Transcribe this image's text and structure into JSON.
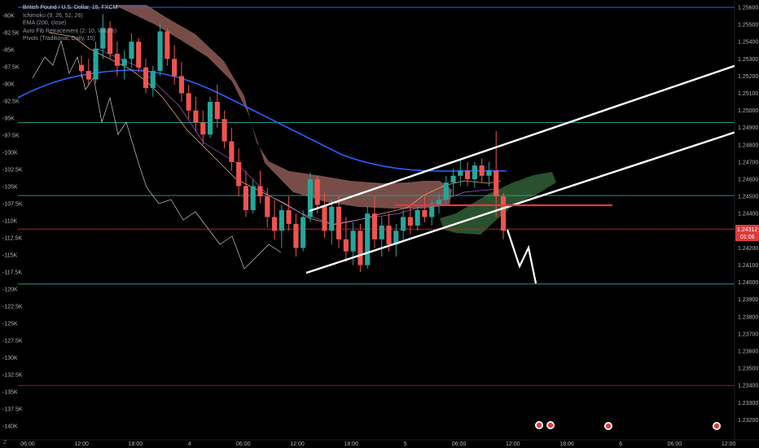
{
  "legend": {
    "symbol": "British Pound / U.S. Dollar, 15, FXCM",
    "ichimoku": "Ichimoku (9, 26, 52, 26)",
    "ema": "EMA (200, close)",
    "fib": "Auto Fib Retracement (2, 10, Values)",
    "pivots": "Pivots (Traditional, Daily, 15)"
  },
  "corner_label": "Z",
  "price_tag": {
    "value": "1.24312",
    "countdown": "01:06",
    "color": "#e03b3b"
  },
  "colors": {
    "background": "#000000",
    "up_candle": "#26a69a",
    "down_candle": "#ef5350",
    "ema": "#2962ff",
    "cloud_bear": "#8d5a55",
    "cloud_bull": "#2f5a32",
    "channel": "#ffffff",
    "fib_line": "#26a69a",
    "pivot_red": "#b22222",
    "resistance": "#e03b3b",
    "top_line": "#2962ff"
  },
  "chart_data": {
    "type": "candlestick",
    "symbol": "GBPUSD",
    "timeframe": "15",
    "right_axis_ticks": [
      "1.25600",
      "1.25500",
      "1.25400",
      "1.25300",
      "1.25200",
      "1.25100",
      "1.25000",
      "1.24900",
      "1.24800",
      "1.24700",
      "1.24600",
      "1.24500",
      "1.24400",
      "1.24300",
      "1.24200",
      "1.24100",
      "1.24000",
      "1.23900",
      "1.23800",
      "1.23700",
      "1.23600",
      "1.23500",
      "1.23400",
      "1.23300",
      "1.23200"
    ],
    "right_axis_range": [
      1.2315,
      1.2563
    ],
    "left_axis_ticks": [
      "-80K",
      "-82.5K",
      "-85K",
      "-87.5K",
      "-90K",
      "-92.5K",
      "-95K",
      "-97.5K",
      "-100K",
      "-102.5K",
      "-105K",
      "-107.5K",
      "-110K",
      "-112.5K",
      "-115K",
      "-117.5K",
      "-120K",
      "-122.5K",
      "-125K",
      "-127.5K",
      "-130K",
      "-132.5K",
      "-135K",
      "-137.5K",
      "-140K"
    ],
    "time_labels": [
      "06:00",
      "12:00",
      "18:00",
      "4",
      "06:00",
      "12:00",
      "18:00",
      "5",
      "06:00",
      "12:00",
      "18:00",
      "6",
      "06:00",
      "12:00"
    ],
    "horizontal_levels": [
      {
        "price": 1.256,
        "kind": "top"
      },
      {
        "price": 1.2493,
        "kind": "fib"
      },
      {
        "price": 1.24505,
        "kind": "fib"
      },
      {
        "price": 1.2431,
        "kind": "pivot"
      },
      {
        "price": 1.2399,
        "kind": "fib"
      },
      {
        "price": 1.234,
        "kind": "pivot"
      }
    ],
    "resistance_segment": {
      "price": 1.24472
    },
    "last_price": 1.24312,
    "candles": [
      [
        1.25265,
        1.2532,
        1.2519,
        1.2523
      ],
      [
        1.2523,
        1.253,
        1.2515,
        1.2518
      ],
      [
        1.2518,
        1.254,
        1.2516,
        1.2536
      ],
      [
        1.2536,
        1.2556,
        1.253,
        1.2548
      ],
      [
        1.2548,
        1.2552,
        1.253,
        1.2533
      ],
      [
        1.2533,
        1.254,
        1.252,
        1.2526
      ],
      [
        1.2526,
        1.2535,
        1.2518,
        1.253
      ],
      [
        1.253,
        1.2545,
        1.2525,
        1.254
      ],
      [
        1.254,
        1.2542,
        1.2522,
        1.2525
      ],
      [
        1.2525,
        1.253,
        1.251,
        1.2513
      ],
      [
        1.2513,
        1.2526,
        1.2508,
        1.2523
      ],
      [
        1.2523,
        1.255,
        1.252,
        1.2546
      ],
      [
        1.2546,
        1.2548,
        1.2526,
        1.253
      ],
      [
        1.253,
        1.2538,
        1.2515,
        1.252
      ],
      [
        1.252,
        1.2528,
        1.2505,
        1.251
      ],
      [
        1.251,
        1.2515,
        1.2495,
        1.25
      ],
      [
        1.25,
        1.2508,
        1.2488,
        1.2493
      ],
      [
        1.2493,
        1.25,
        1.248,
        1.2486
      ],
      [
        1.2486,
        1.2508,
        1.2484,
        1.2505
      ],
      [
        1.2505,
        1.2515,
        1.249,
        1.2495
      ],
      [
        1.2495,
        1.25,
        1.2478,
        1.2482
      ],
      [
        1.2482,
        1.249,
        1.2465,
        1.247
      ],
      [
        1.247,
        1.2478,
        1.245,
        1.2456
      ],
      [
        1.2456,
        1.2465,
        1.2438,
        1.2442
      ],
      [
        1.2442,
        1.246,
        1.244,
        1.2456
      ],
      [
        1.2456,
        1.2465,
        1.2446,
        1.245
      ],
      [
        1.245,
        1.2455,
        1.2432,
        1.2438
      ],
      [
        1.2438,
        1.2448,
        1.2425,
        1.243
      ],
      [
        1.243,
        1.2445,
        1.242,
        1.2442
      ],
      [
        1.2442,
        1.245,
        1.243,
        1.2434
      ],
      [
        1.2434,
        1.244,
        1.2415,
        1.242
      ],
      [
        1.242,
        1.2442,
        1.2418,
        1.2438
      ],
      [
        1.2438,
        1.2464,
        1.2435,
        1.246
      ],
      [
        1.246,
        1.2462,
        1.244,
        1.2445
      ],
      [
        1.2445,
        1.2452,
        1.2426,
        1.243
      ],
      [
        1.243,
        1.2448,
        1.2422,
        1.2444
      ],
      [
        1.2444,
        1.245,
        1.242,
        1.2425
      ],
      [
        1.2425,
        1.2438,
        1.2412,
        1.2418
      ],
      [
        1.2418,
        1.2435,
        1.241,
        1.243
      ],
      [
        1.243,
        1.2434,
        1.2406,
        1.241
      ],
      [
        1.241,
        1.2444,
        1.2408,
        1.244
      ],
      [
        1.244,
        1.245,
        1.242,
        1.2425
      ],
      [
        1.2425,
        1.2438,
        1.2415,
        1.2433
      ],
      [
        1.2433,
        1.244,
        1.2418,
        1.2422
      ],
      [
        1.2422,
        1.2434,
        1.2415,
        1.243
      ],
      [
        1.243,
        1.2442,
        1.2425,
        1.2438
      ],
      [
        1.2438,
        1.2446,
        1.2428,
        1.2433
      ],
      [
        1.2433,
        1.2445,
        1.243,
        1.2442
      ],
      [
        1.2442,
        1.245,
        1.2435,
        1.2438
      ],
      [
        1.2438,
        1.2448,
        1.2433,
        1.2445
      ],
      [
        1.2445,
        1.2452,
        1.244,
        1.2448
      ],
      [
        1.2448,
        1.2462,
        1.2445,
        1.2458
      ],
      [
        1.2458,
        1.2466,
        1.245,
        1.2462
      ],
      [
        1.2462,
        1.2472,
        1.2456,
        1.2465
      ],
      [
        1.2465,
        1.247,
        1.2456,
        1.246
      ],
      [
        1.246,
        1.247,
        1.2455,
        1.2468
      ],
      [
        1.2468,
        1.2472,
        1.2458,
        1.2462
      ],
      [
        1.2462,
        1.247,
        1.2456,
        1.2465
      ],
      [
        1.2465,
        1.2488,
        1.2438,
        1.245
      ],
      [
        1.245,
        1.2452,
        1.2425,
        1.243
      ]
    ]
  }
}
